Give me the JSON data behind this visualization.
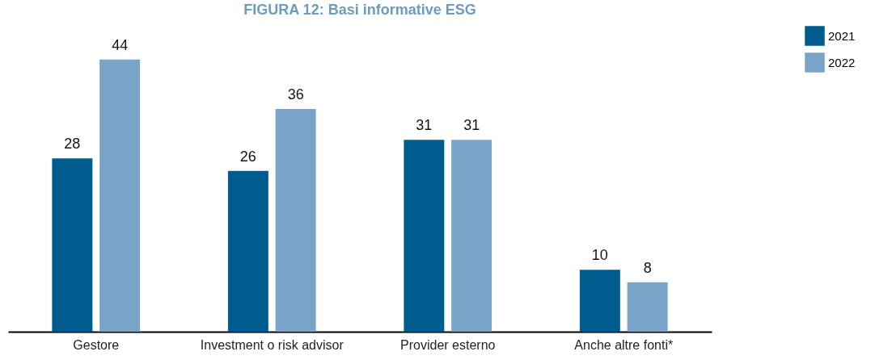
{
  "chart_data": {
    "type": "bar",
    "title": "FIGURA 12: Basi informative ESG",
    "categories": [
      "Gestore",
      "Investment o risk advisor",
      "Provider esterno",
      "Anche altre fonti*"
    ],
    "series": [
      {
        "name": "2021",
        "color": "#005b8f",
        "values": [
          28,
          26,
          31,
          10
        ]
      },
      {
        "name": "2022",
        "color": "#79a3c7",
        "values": [
          44,
          36,
          31,
          8
        ]
      }
    ],
    "data_labels": true,
    "legend": "top right"
  }
}
